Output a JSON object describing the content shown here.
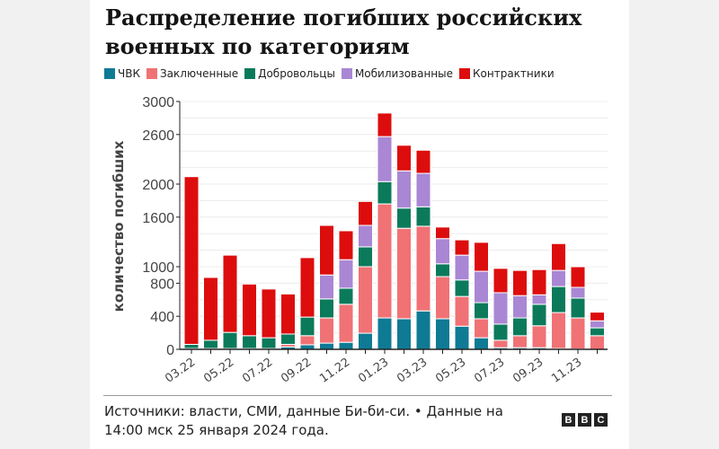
{
  "chart_data": {
    "type": "bar",
    "stacked": true,
    "title": "Распределение погибших российских военных по категориям",
    "ylabel": "количество погибших",
    "xlabel": "",
    "ylim": [
      0,
      3000
    ],
    "yticks": [
      0,
      400,
      800,
      1000,
      1600,
      2000,
      2600,
      3000
    ],
    "grid": true,
    "legend_placement": "top",
    "categories": [
      "03.22",
      "04.22",
      "05.22",
      "06.22",
      "07.22",
      "08.22",
      "09.22",
      "10.22",
      "11.22",
      "12.22",
      "01.23",
      "02.23",
      "03.23",
      "04.23",
      "05.23",
      "06.23",
      "07.23",
      "08.23",
      "09.23",
      "10.23",
      "11.23",
      "12.23"
    ],
    "xtick_labels": [
      "03.22",
      "05.22",
      "07.22",
      "09.22",
      "11.22",
      "01.23",
      "03.23",
      "05.23",
      "07.23",
      "09.23",
      "11.23"
    ],
    "series": [
      {
        "name": "ЧВК",
        "color": "#0f7a94",
        "values": [
          10,
          10,
          10,
          10,
          10,
          30,
          55,
          75,
          85,
          195,
          380,
          370,
          465,
          370,
          280,
          140,
          20,
          20,
          20,
          10,
          5,
          0
        ]
      },
      {
        "name": "Заключенные",
        "color": "#f07275",
        "values": [
          0,
          0,
          0,
          0,
          0,
          30,
          110,
          305,
          460,
          805,
          1380,
          1095,
          1025,
          510,
          360,
          230,
          90,
          145,
          265,
          435,
          375,
          165
        ]
      },
      {
        "name": "Добровольцы",
        "color": "#0b7a5b",
        "values": [
          50,
          100,
          195,
          155,
          130,
          125,
          225,
          230,
          195,
          240,
          270,
          245,
          235,
          155,
          200,
          195,
          195,
          215,
          260,
          315,
          240,
          95
        ]
      },
      {
        "name": "Мобилизованные",
        "color": "#a987d4",
        "values": [
          0,
          0,
          0,
          0,
          0,
          0,
          0,
          290,
          345,
          260,
          545,
          450,
          405,
          305,
          300,
          380,
          380,
          270,
          115,
          195,
          130,
          85
        ]
      },
      {
        "name": "Контрактники",
        "color": "#dd0d0d",
        "values": [
          2030,
          760,
          935,
          625,
          590,
          485,
          720,
          600,
          350,
          290,
          285,
          310,
          280,
          140,
          185,
          350,
          295,
          305,
          305,
          325,
          250,
          105
        ]
      }
    ]
  },
  "footer": {
    "source": "Источники: власти, СМИ, данные Би-би-си. • Данные на 14:00 мск 25 января 2024 года.",
    "logo": "BBC"
  }
}
